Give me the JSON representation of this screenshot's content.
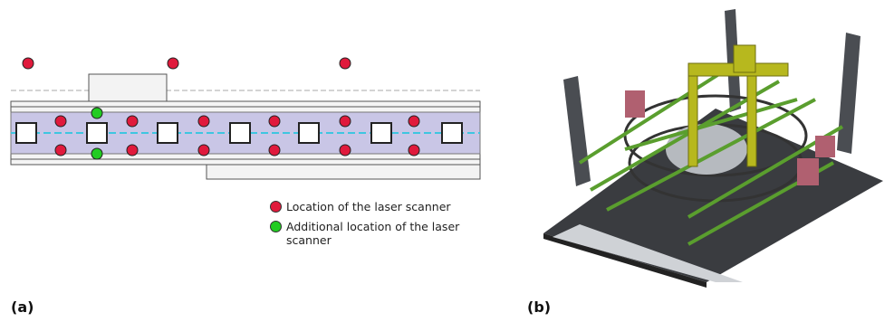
{
  "panel_a": {
    "label": "(a)",
    "legend": [
      {
        "text": "Location of the laser scanner"
      },
      {
        "text": "Additional location of the laser scanner"
      }
    ]
  },
  "panel_b": {
    "label": "(b)"
  }
}
